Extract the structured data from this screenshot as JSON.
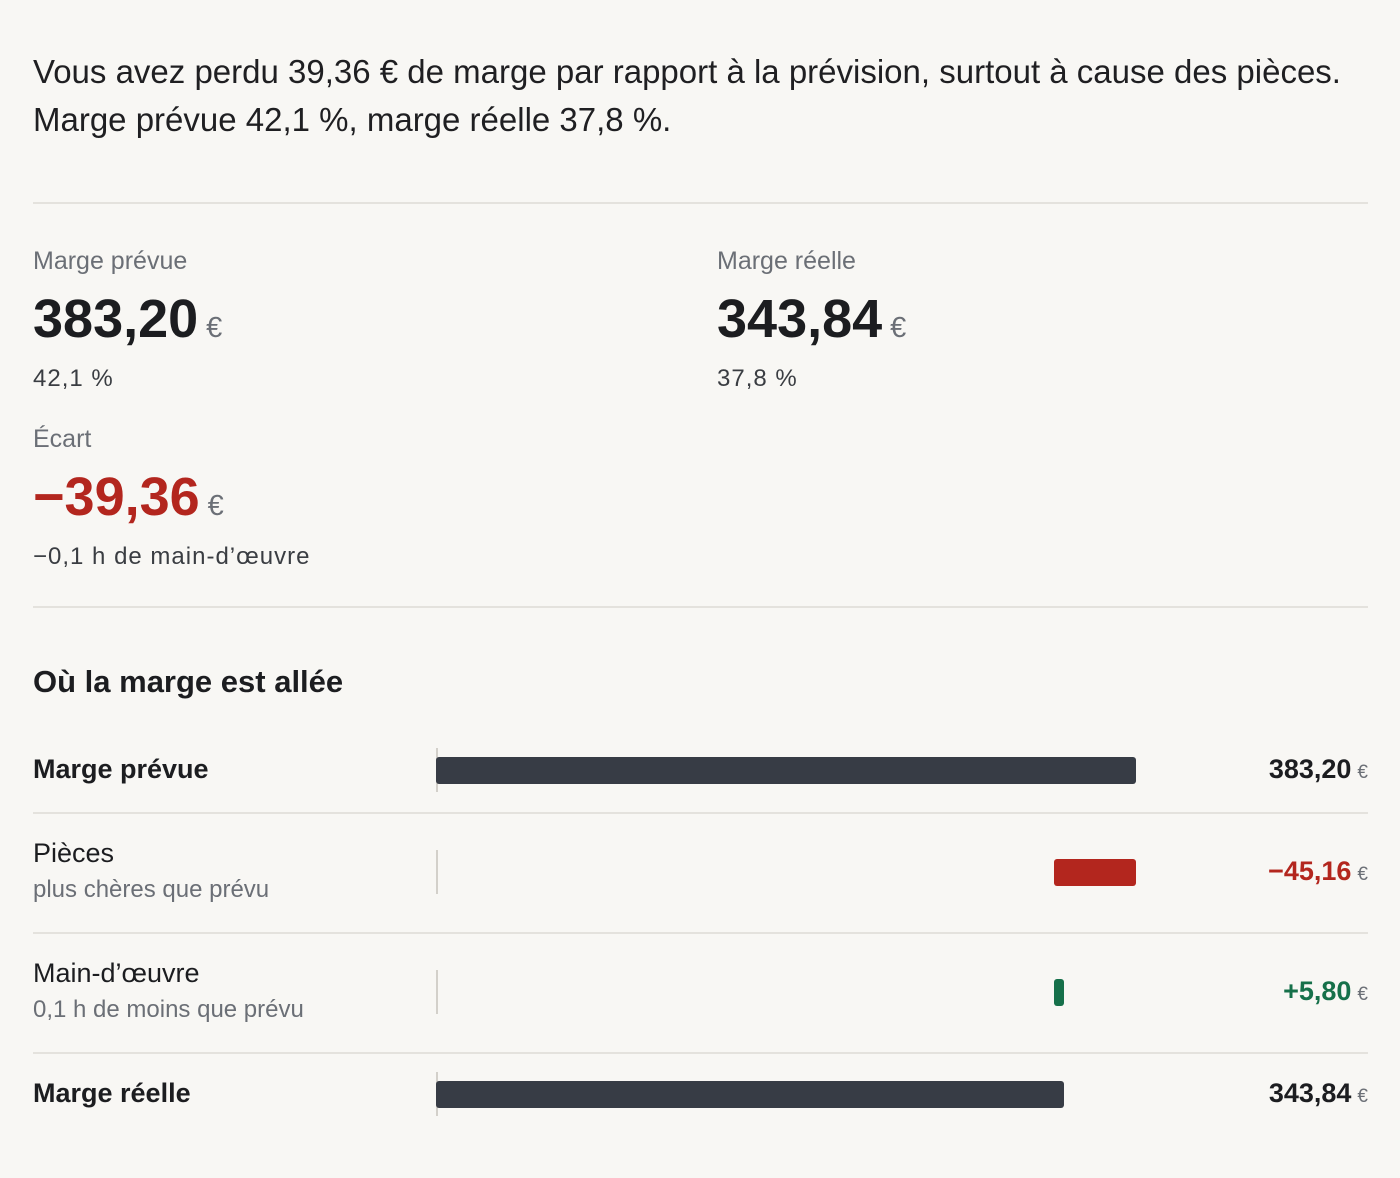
{
  "summary": {
    "text": "Vous avez perdu 39,36 € de marge par rapport à la prévision, surtout à cause des pièces. Marge prévue 42,1 %, marge réelle 37,8 %."
  },
  "metrics": {
    "planned": {
      "label": "Marge prévue",
      "value": "383,20",
      "currency": "€",
      "sub": "42,1 %"
    },
    "actual": {
      "label": "Marge réelle",
      "value": "343,84",
      "currency": "€",
      "sub": "37,8 %"
    },
    "variance": {
      "label": "Écart",
      "value": "−39,36",
      "currency": "€",
      "sub": "−0,1 h de main-d’œuvre"
    }
  },
  "breakdown": {
    "title": "Où la marge est allée"
  },
  "colors": {
    "total": "#373c45",
    "negative": "#b3261e",
    "positive": "#16704a"
  },
  "chart_data": {
    "type": "bar",
    "subtype": "waterfall",
    "title": "Où la marge est allée",
    "unit": "€",
    "items": [
      {
        "label": "Marge prévue",
        "sub": "",
        "kind": "total",
        "value": 383.2,
        "display": "383,20"
      },
      {
        "label": "Pièces",
        "sub": "plus chères que prévu",
        "kind": "delta",
        "value": -45.16,
        "display": "−45,16"
      },
      {
        "label": "Main-d’œuvre",
        "sub": "0,1 h de moins que prévu",
        "kind": "delta",
        "value": 5.8,
        "display": "+5,80"
      },
      {
        "label": "Marge réelle",
        "sub": "",
        "kind": "total",
        "value": 343.84,
        "display": "343,84"
      }
    ]
  }
}
